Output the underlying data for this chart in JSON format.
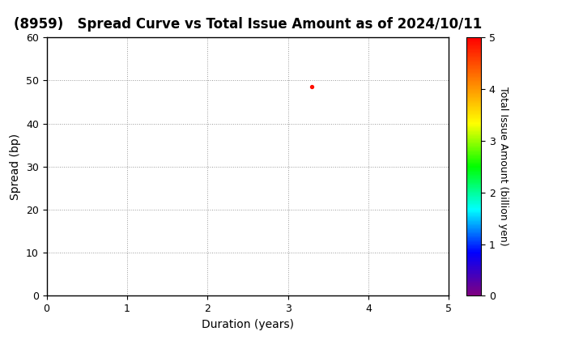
{
  "title": "(8959)   Spread Curve vs Total Issue Amount as of 2024/10/11",
  "xlabel": "Duration (years)",
  "ylabel": "Spread (bp)",
  "colorbar_label": "Total Issue Amount (billion yen)",
  "xlim": [
    0,
    5
  ],
  "ylim": [
    0,
    60
  ],
  "xticks": [
    0,
    1,
    2,
    3,
    4,
    5
  ],
  "yticks": [
    0,
    10,
    20,
    30,
    40,
    50,
    60
  ],
  "scatter_x": [
    3.3
  ],
  "scatter_y": [
    48.5
  ],
  "scatter_color_value": [
    4.9
  ],
  "scatter_size": 8,
  "colormap_min": 0,
  "colormap_max": 5,
  "colorbar_ticks": [
    0,
    1,
    2,
    3,
    4,
    5
  ],
  "background_color": "#ffffff",
  "grid_color": "#999999",
  "title_fontsize": 12,
  "axis_label_fontsize": 10,
  "tick_fontsize": 9,
  "colorbar_label_fontsize": 9
}
